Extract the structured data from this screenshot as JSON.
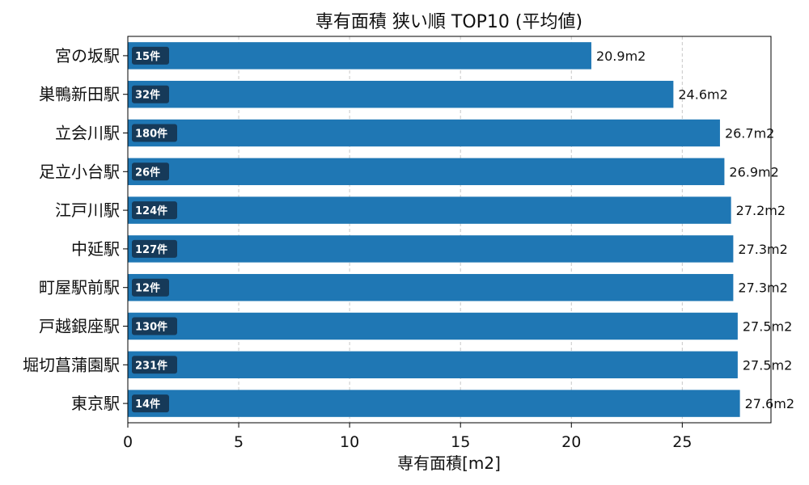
{
  "chart_data": {
    "type": "bar",
    "orientation": "horizontal",
    "title": "専有面積 狭い順 TOP10 (平均値)",
    "xlabel": "専有面積[m2]",
    "ylabel": "",
    "xlim": [
      0,
      29
    ],
    "xticks": [
      0,
      5,
      10,
      15,
      20,
      25
    ],
    "grid": "x-dashed",
    "bar_color": "#1f77b4",
    "badge_color": "#163a59",
    "categories": [
      "宮の坂駅",
      "巣鴨新田駅",
      "立会川駅",
      "足立小台駅",
      "江戸川駅",
      "中延駅",
      "町屋駅前駅",
      "戸越銀座駅",
      "堀切菖蒲園駅",
      "東京駅"
    ],
    "values": [
      20.9,
      24.6,
      26.7,
      26.9,
      27.2,
      27.3,
      27.3,
      27.5,
      27.5,
      27.6
    ],
    "value_labels": [
      "20.9m2",
      "24.6m2",
      "26.7m2",
      "26.9m2",
      "27.2m2",
      "27.3m2",
      "27.3m2",
      "27.5m2",
      "27.5m2",
      "27.6m2"
    ],
    "counts": [
      "15件",
      "32件",
      "180件",
      "26件",
      "124件",
      "127件",
      "12件",
      "130件",
      "231件",
      "14件"
    ]
  }
}
